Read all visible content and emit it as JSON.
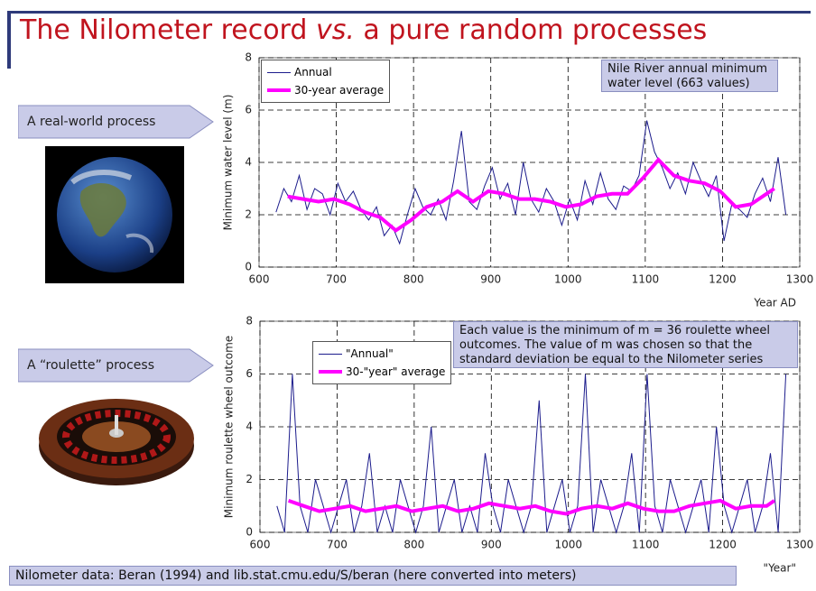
{
  "slide": {
    "title_parts": [
      "The Nilometer record ",
      "vs.",
      " a pure random processes"
    ],
    "labels": [
      "A real-world process",
      "A “roulette” process"
    ],
    "footer": "Nilometer data: Beran (1994) and lib.stat.cmu.edu/S/beran (here converted into meters)"
  },
  "chart_data": [
    {
      "type": "line",
      "y_label": "Minimum water level (m)",
      "x_label": "Year AD",
      "annotation": "Nile River annual minimum water level (663 values)",
      "xlim": [
        600,
        1300
      ],
      "xticks": [
        600,
        700,
        800,
        900,
        1000,
        1100,
        1200,
        1300
      ],
      "ylim": [
        0,
        8
      ],
      "yticks": [
        0,
        2,
        4,
        6,
        8
      ],
      "grid": true,
      "legend": "top-left",
      "series": [
        {
          "name": "Annual",
          "color": "#1c1c8c",
          "x": [
            622,
            632,
            642,
            652,
            662,
            672,
            682,
            692,
            702,
            712,
            722,
            732,
            742,
            752,
            762,
            772,
            782,
            792,
            802,
            812,
            822,
            832,
            842,
            852,
            862,
            872,
            882,
            892,
            902,
            912,
            922,
            932,
            942,
            952,
            962,
            972,
            982,
            992,
            1002,
            1012,
            1022,
            1032,
            1042,
            1052,
            1062,
            1072,
            1082,
            1092,
            1102,
            1112,
            1122,
            1132,
            1142,
            1152,
            1162,
            1172,
            1182,
            1192,
            1202,
            1212,
            1222,
            1232,
            1242,
            1252,
            1262,
            1272,
            1282
          ],
          "values": [
            2.1,
            3.0,
            2.5,
            3.5,
            2.2,
            3.0,
            2.8,
            2.0,
            3.2,
            2.5,
            2.9,
            2.2,
            1.8,
            2.3,
            1.2,
            1.6,
            0.9,
            2.0,
            3.0,
            2.3,
            2.0,
            2.6,
            1.8,
            3.3,
            5.2,
            2.5,
            2.2,
            3.1,
            3.8,
            2.6,
            3.2,
            2.0,
            4.0,
            2.6,
            2.1,
            3.0,
            2.5,
            1.6,
            2.6,
            1.8,
            3.3,
            2.4,
            3.6,
            2.6,
            2.2,
            3.1,
            2.9,
            3.5,
            5.6,
            4.4,
            3.8,
            3.0,
            3.6,
            2.8,
            4.0,
            3.3,
            2.7,
            3.5,
            1.0,
            2.4,
            2.2,
            1.9,
            2.8,
            3.4,
            2.5,
            4.2,
            2.0
          ]
        },
        {
          "name": "30-year average",
          "color": "#ff00ff",
          "x": [
            637,
            657,
            677,
            697,
            717,
            737,
            757,
            777,
            797,
            817,
            837,
            857,
            877,
            897,
            917,
            937,
            957,
            977,
            997,
            1017,
            1037,
            1057,
            1077,
            1097,
            1117,
            1137,
            1157,
            1177,
            1197,
            1217,
            1237,
            1257,
            1267
          ],
          "values": [
            2.7,
            2.6,
            2.5,
            2.6,
            2.4,
            2.1,
            1.9,
            1.4,
            1.8,
            2.3,
            2.5,
            2.9,
            2.5,
            2.9,
            2.8,
            2.6,
            2.6,
            2.5,
            2.3,
            2.4,
            2.7,
            2.8,
            2.8,
            3.4,
            4.1,
            3.5,
            3.3,
            3.2,
            2.9,
            2.3,
            2.4,
            2.8,
            3.0
          ]
        }
      ]
    },
    {
      "type": "line",
      "y_label": "Minimum roulette wheel outcome",
      "x_label": "\"Year\"",
      "annotation": "Each value is the minimum of m = 36 roulette wheel outcomes. The value of m was chosen so that the standard deviation be equal to the Nilometer series",
      "xlim": [
        600,
        1300
      ],
      "xticks": [
        600,
        700,
        800,
        900,
        1000,
        1100,
        1200,
        1300
      ],
      "ylim": [
        0,
        8
      ],
      "yticks": [
        0,
        2,
        4,
        6,
        8
      ],
      "grid": true,
      "legend": "top-left",
      "series": [
        {
          "name": "\"Annual\"",
          "color": "#1c1c8c",
          "x": [
            622,
            632,
            642,
            652,
            662,
            672,
            682,
            692,
            702,
            712,
            722,
            732,
            742,
            752,
            762,
            772,
            782,
            792,
            802,
            812,
            822,
            832,
            842,
            852,
            862,
            872,
            882,
            892,
            902,
            912,
            922,
            932,
            942,
            952,
            962,
            972,
            982,
            992,
            1002,
            1012,
            1022,
            1032,
            1042,
            1052,
            1062,
            1072,
            1082,
            1092,
            1102,
            1112,
            1122,
            1132,
            1142,
            1152,
            1162,
            1172,
            1182,
            1192,
            1202,
            1212,
            1222,
            1232,
            1242,
            1252,
            1262,
            1272,
            1282
          ],
          "values": [
            1,
            0,
            6,
            1,
            0,
            2,
            1,
            0,
            1,
            2,
            0,
            1,
            3,
            0,
            1,
            0,
            2,
            1,
            0,
            1,
            4,
            0,
            1,
            2,
            0,
            1,
            0,
            3,
            1,
            0,
            2,
            1,
            0,
            1,
            5,
            0,
            1,
            2,
            0,
            1,
            6,
            0,
            2,
            1,
            0,
            1,
            3,
            0,
            6,
            1,
            0,
            2,
            1,
            0,
            1,
            2,
            0,
            4,
            1,
            0,
            1,
            2,
            0,
            1,
            3,
            0,
            6
          ]
        },
        {
          "name": "30-\"year\" average",
          "color": "#ff00ff",
          "x": [
            637,
            657,
            677,
            697,
            717,
            737,
            757,
            777,
            797,
            817,
            837,
            857,
            877,
            897,
            917,
            937,
            957,
            977,
            997,
            1017,
            1037,
            1057,
            1077,
            1097,
            1117,
            1137,
            1157,
            1177,
            1197,
            1217,
            1237,
            1257,
            1267
          ],
          "values": [
            1.2,
            1.0,
            0.8,
            0.9,
            1.0,
            0.8,
            0.9,
            1.0,
            0.8,
            0.9,
            1.0,
            0.8,
            0.9,
            1.1,
            1.0,
            0.9,
            1.0,
            0.8,
            0.7,
            0.9,
            1.0,
            0.9,
            1.1,
            0.9,
            0.8,
            0.8,
            1.0,
            1.1,
            1.2,
            0.9,
            1.0,
            1.0,
            1.2
          ]
        }
      ]
    }
  ]
}
